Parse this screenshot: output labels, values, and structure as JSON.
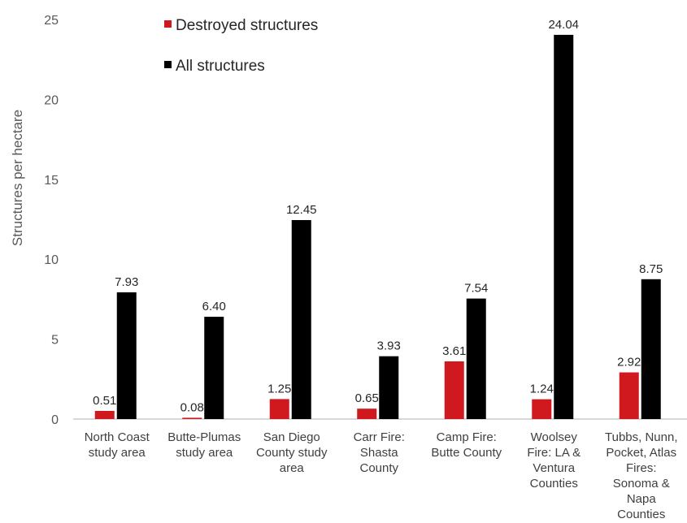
{
  "chart_data": {
    "type": "bar",
    "ylabel": "Structures per hectare",
    "xlabel": "",
    "ylim": [
      0,
      25
    ],
    "yticks": [
      0,
      5,
      10,
      15,
      20,
      25
    ],
    "grid": false,
    "legend_position": "top-left",
    "categories": [
      [
        "North Coast",
        "study area"
      ],
      [
        "Butte-Plumas",
        "study area"
      ],
      [
        "San Diego",
        "County study",
        "area"
      ],
      [
        "Carr Fire:",
        "Shasta",
        "County"
      ],
      [
        "Camp Fire:",
        "Butte County"
      ],
      [
        "Woolsey",
        "Fire: LA &",
        "Ventura",
        "Counties"
      ],
      [
        "Tubbs, Nunn,",
        "Pocket, Atlas",
        "Fires:",
        "Sonoma &",
        "Napa",
        "Counties"
      ]
    ],
    "series": [
      {
        "name": "Destroyed structures",
        "color": "#d0191f",
        "values": [
          0.51,
          0.08,
          1.25,
          0.65,
          3.61,
          1.24,
          2.92
        ],
        "labels": [
          "0.51",
          "0.08",
          "1.25",
          "0.65",
          "3.61",
          "1.24",
          "2.92"
        ]
      },
      {
        "name": "All structures",
        "color": "#000000",
        "values": [
          7.93,
          6.4,
          12.45,
          3.93,
          7.54,
          24.04,
          8.75
        ],
        "labels": [
          "7.93",
          "6.40",
          "12.45",
          "3.93",
          "7.54",
          "24.04",
          "8.75"
        ]
      }
    ]
  }
}
